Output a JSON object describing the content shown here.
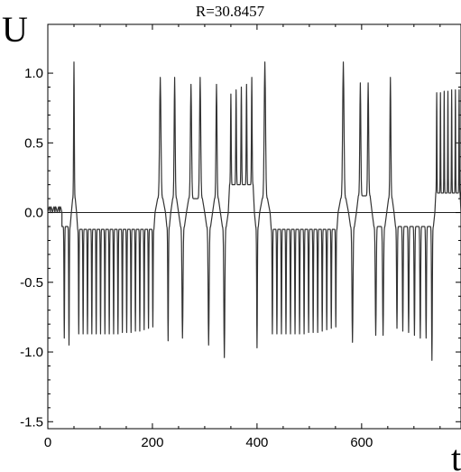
{
  "chart_data": {
    "type": "line",
    "title": "R=30.8457",
    "ylabel": "U",
    "xlabel": "t",
    "xlim": [
      0,
      790
    ],
    "ylim": [
      -1.55,
      1.35
    ],
    "xticks": [
      0,
      200,
      400,
      600
    ],
    "xtick_labels": [
      "0",
      "200",
      "400",
      "600"
    ],
    "yticks": [
      -1.5,
      -1.0,
      -0.5,
      0.0,
      0.5,
      1.0
    ],
    "ytick_labels": [
      "-1.5",
      "-1.0",
      "-0.5",
      "0.0",
      "0.5",
      "1.0"
    ],
    "reference_line_y": 0,
    "grid": false,
    "segments": [
      {
        "from": 0,
        "to": 45,
        "sign": "neg",
        "base": -0.1,
        "peaks": [
          0,
          0,
          0,
          -0.9,
          -0.95
        ]
      },
      {
        "from": 45,
        "to": 55,
        "sign": "pos",
        "base": 0.1,
        "peaks": [
          1.08
        ]
      },
      {
        "from": 55,
        "to": 205,
        "sign": "neg",
        "base": -0.12,
        "peaks": [
          -0.87,
          -0.87,
          -0.87,
          -0.87,
          -0.87,
          -0.87,
          -0.87,
          -0.87,
          -0.87,
          -0.87,
          -0.86,
          -0.86,
          -0.86,
          -0.85,
          -0.85,
          -0.84,
          -0.83,
          -0.82
        ]
      },
      {
        "from": 205,
        "to": 225,
        "sign": "pos",
        "base": 0.1,
        "peaks": [
          0.97
        ]
      },
      {
        "from": 225,
        "to": 235,
        "sign": "neg",
        "base": -0.1,
        "peaks": [
          -0.92
        ]
      },
      {
        "from": 235,
        "to": 250,
        "sign": "pos",
        "base": 0.1,
        "peaks": [
          0.97
        ]
      },
      {
        "from": 250,
        "to": 265,
        "sign": "neg",
        "base": -0.1,
        "peaks": [
          -0.9
        ]
      },
      {
        "from": 265,
        "to": 300,
        "sign": "pos",
        "base": 0.1,
        "peaks": [
          0.92,
          0.97
        ]
      },
      {
        "from": 300,
        "to": 315,
        "sign": "neg",
        "base": -0.1,
        "peaks": [
          -0.95
        ]
      },
      {
        "from": 315,
        "to": 330,
        "sign": "pos",
        "base": 0.1,
        "peaks": [
          0.92
        ]
      },
      {
        "from": 330,
        "to": 345,
        "sign": "neg",
        "base": -0.1,
        "peaks": [
          -1.04
        ]
      },
      {
        "from": 345,
        "to": 395,
        "sign": "pos",
        "base": 0.2,
        "peaks": [
          0.85,
          0.88,
          0.9,
          0.92,
          0.97
        ]
      },
      {
        "from": 395,
        "to": 405,
        "sign": "neg",
        "base": -0.1,
        "peaks": [
          -0.97
        ]
      },
      {
        "from": 405,
        "to": 425,
        "sign": "pos",
        "base": 0.1,
        "peaks": [
          1.08
        ]
      },
      {
        "from": 425,
        "to": 555,
        "sign": "neg",
        "base": -0.12,
        "peaks": [
          -0.87,
          -0.87,
          -0.87,
          -0.87,
          -0.87,
          -0.87,
          -0.87,
          -0.87,
          -0.86,
          -0.86,
          -0.86,
          -0.85,
          -0.84,
          -0.83,
          -0.82
        ]
      },
      {
        "from": 555,
        "to": 575,
        "sign": "pos",
        "base": 0.1,
        "peaks": [
          1.08
        ]
      },
      {
        "from": 575,
        "to": 590,
        "sign": "neg",
        "base": -0.1,
        "peaks": [
          -0.93
        ]
      },
      {
        "from": 590,
        "to": 620,
        "sign": "pos",
        "base": 0.12,
        "peaks": [
          0.93,
          0.93
        ]
      },
      {
        "from": 620,
        "to": 648,
        "sign": "neg",
        "base": -0.1,
        "peaks": [
          -0.88,
          -0.88
        ]
      },
      {
        "from": 648,
        "to": 662,
        "sign": "pos",
        "base": 0.1,
        "peaks": [
          0.97
        ]
      },
      {
        "from": 662,
        "to": 740,
        "sign": "neg",
        "base": -0.1,
        "peaks": [
          -0.83,
          -0.85,
          -0.86,
          -0.88,
          -0.9,
          -0.9,
          -1.06
        ]
      },
      {
        "from": 740,
        "to": 790,
        "sign": "pos",
        "base": 0.14,
        "peaks": [
          0.86,
          0.86,
          0.87,
          0.87,
          0.88,
          0.88,
          0.88
        ]
      }
    ]
  }
}
